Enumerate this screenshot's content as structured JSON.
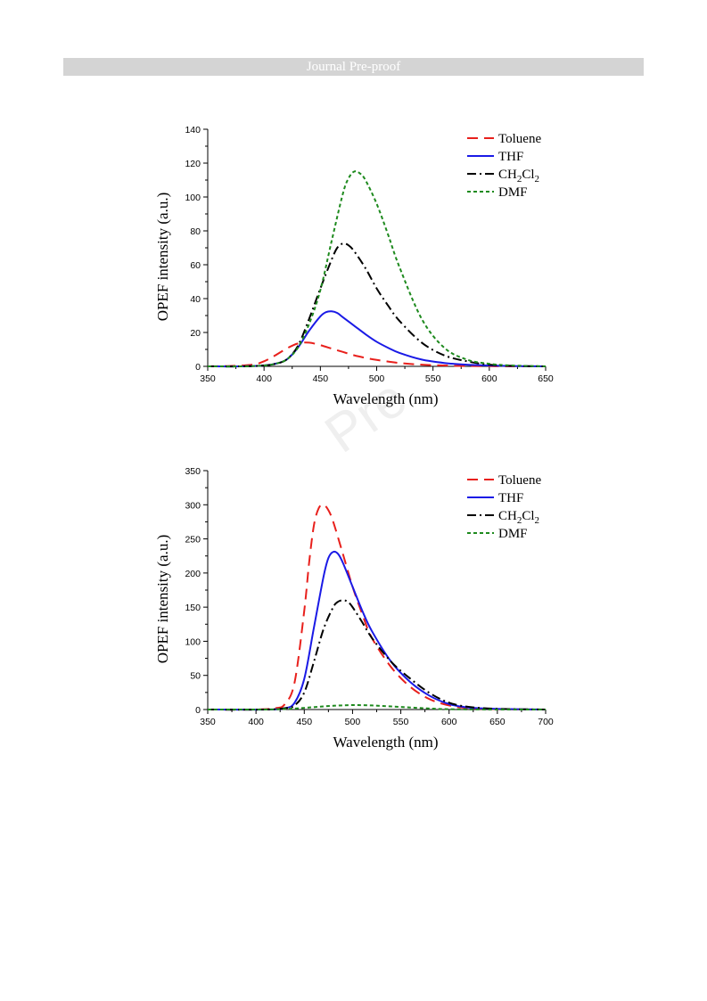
{
  "header": {
    "banner": "Journal Pre-proof"
  },
  "watermark": "Pre",
  "chart_data": [
    {
      "type": "line",
      "xlabel": "Wavelength (nm)",
      "ylabel": "OPEF intensity (a.u.)",
      "xlim": [
        350,
        650
      ],
      "ylim": [
        0,
        140
      ],
      "xticks": [
        350,
        400,
        450,
        500,
        550,
        600,
        650
      ],
      "yticks": [
        0,
        20,
        40,
        60,
        80,
        100,
        120,
        140
      ],
      "legend_position": "top-right",
      "series": [
        {
          "name": "Toluene",
          "color": "#e8201c",
          "dash": "dashed",
          "x": [
            350,
            370,
            390,
            400,
            410,
            420,
            430,
            440,
            450,
            460,
            470,
            480,
            490,
            500,
            520,
            540,
            560,
            580,
            600,
            620,
            650
          ],
          "y": [
            0,
            0.2,
            1,
            3,
            6.5,
            10.5,
            13.5,
            14,
            12.5,
            10.5,
            8.5,
            6.5,
            5,
            3.8,
            2,
            1,
            0.5,
            0.2,
            0.1,
            0,
            0
          ]
        },
        {
          "name": "THF",
          "color": "#1a1ae6",
          "dash": "solid",
          "x": [
            350,
            380,
            400,
            410,
            420,
            430,
            440,
            450,
            455,
            460,
            465,
            470,
            480,
            490,
            500,
            510,
            520,
            540,
            560,
            580,
            600,
            620,
            650
          ],
          "y": [
            0,
            0,
            0.5,
            1.5,
            4,
            11,
            21,
            29.5,
            32,
            32.5,
            31.5,
            29,
            24,
            19,
            14.5,
            11,
            8,
            4,
            2,
            1,
            0.5,
            0.2,
            0
          ],
          "labels": []
        },
        {
          "name": "CH2Cl2",
          "color": "#000000",
          "dash": "dashdot",
          "x": [
            350,
            380,
            400,
            410,
            420,
            430,
            440,
            450,
            460,
            465,
            470,
            475,
            480,
            490,
            500,
            510,
            520,
            540,
            560,
            580,
            600,
            620,
            650
          ],
          "y": [
            0,
            0,
            0.5,
            1.5,
            4,
            12,
            28,
            46,
            63,
            70,
            72.5,
            71.5,
            68,
            58,
            46,
            36,
            27,
            14,
            6.5,
            3,
            1,
            0.3,
            0
          ]
        },
        {
          "name": "DMF",
          "color": "#1e8a1e",
          "dash": "dotted",
          "x": [
            350,
            380,
            400,
            410,
            420,
            430,
            440,
            450,
            460,
            470,
            475,
            480,
            485,
            490,
            500,
            510,
            520,
            540,
            560,
            580,
            600,
            620,
            650
          ],
          "y": [
            0,
            0,
            0.5,
            1.5,
            4,
            11,
            25,
            45,
            74,
            102,
            111,
            115,
            114,
            110,
            96,
            78,
            59,
            28,
            11,
            4,
            1.5,
            0.5,
            0
          ]
        }
      ]
    },
    {
      "type": "line",
      "xlabel": "Wavelength (nm)",
      "ylabel": "OPEF intensity (a.u.)",
      "xlim": [
        350,
        700
      ],
      "ylim": [
        0,
        350
      ],
      "xticks": [
        350,
        400,
        450,
        500,
        550,
        600,
        650,
        700
      ],
      "yticks": [
        0,
        50,
        100,
        150,
        200,
        250,
        300,
        350
      ],
      "legend_position": "top-right",
      "series": [
        {
          "name": "Toluene",
          "color": "#e8201c",
          "dash": "dashed",
          "x": [
            350,
            400,
            420,
            430,
            440,
            450,
            455,
            460,
            465,
            470,
            475,
            480,
            490,
            500,
            510,
            520,
            540,
            560,
            580,
            600,
            620,
            650,
            700
          ],
          "y": [
            0,
            0,
            2,
            8,
            40,
            145,
            215,
            270,
            295,
            300,
            292,
            275,
            228,
            180,
            140,
            105,
            62,
            33,
            15,
            6,
            2,
            0.5,
            0
          ]
        },
        {
          "name": "THF",
          "color": "#1a1ae6",
          "dash": "solid",
          "x": [
            350,
            410,
            430,
            440,
            450,
            460,
            470,
            475,
            480,
            485,
            490,
            500,
            510,
            520,
            540,
            560,
            580,
            600,
            620,
            650,
            700
          ],
          "y": [
            0,
            0,
            2,
            10,
            45,
            120,
            195,
            222,
            231,
            228,
            215,
            180,
            145,
            115,
            70,
            40,
            20,
            8,
            3,
            1,
            0
          ]
        },
        {
          "name": "CH2Cl2",
          "color": "#000000",
          "dash": "dashdot",
          "x": [
            350,
            410,
            430,
            440,
            450,
            460,
            470,
            480,
            485,
            490,
            495,
            500,
            510,
            520,
            540,
            560,
            580,
            600,
            620,
            650,
            700
          ],
          "y": [
            0,
            0,
            2,
            6,
            25,
            70,
            118,
            150,
            158,
            160,
            158,
            150,
            128,
            105,
            70,
            45,
            24,
            10,
            4,
            1,
            0
          ]
        },
        {
          "name": "DMF",
          "color": "#1e8a1e",
          "dash": "dotted",
          "x": [
            350,
            400,
            420,
            440,
            460,
            480,
            500,
            520,
            540,
            560,
            580,
            600,
            650,
            700
          ],
          "y": [
            0,
            0,
            0.3,
            1.5,
            3.5,
            5.5,
            6.5,
            6,
            4.5,
            3,
            1.5,
            0.5,
            0,
            0
          ]
        }
      ]
    }
  ]
}
